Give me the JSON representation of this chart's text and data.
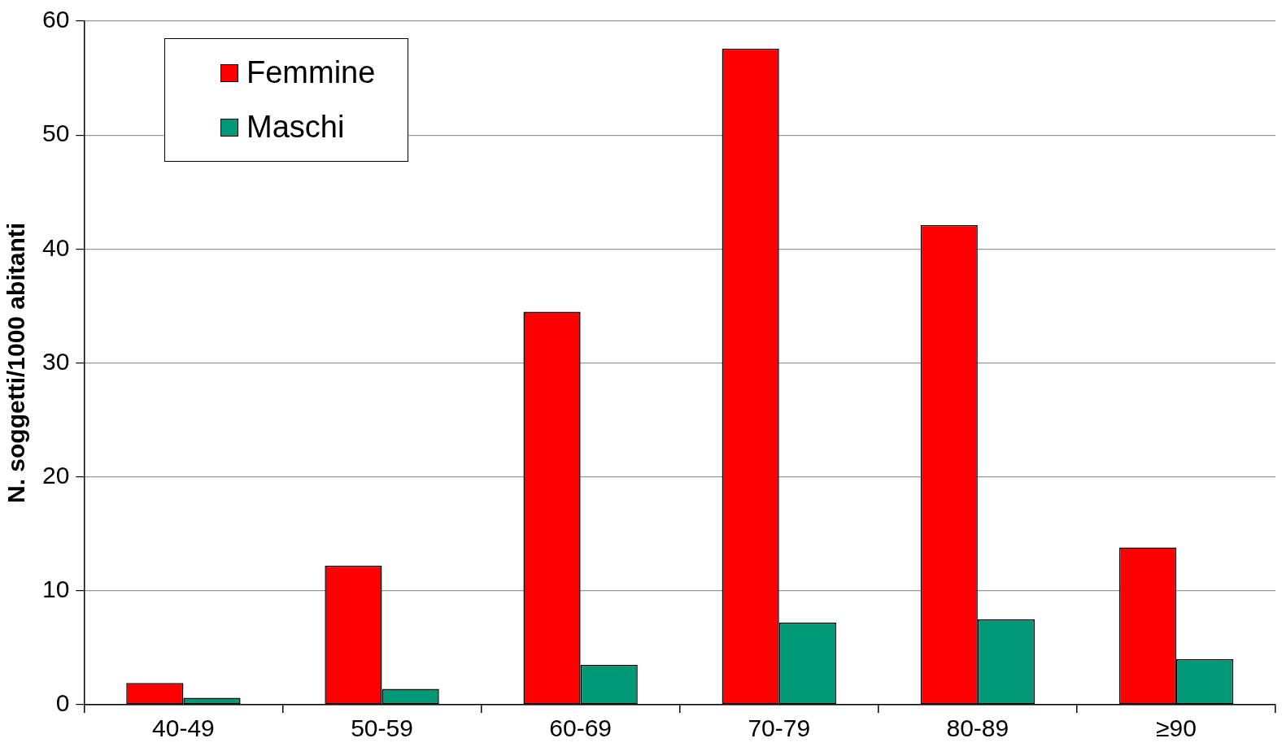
{
  "chart_data": {
    "type": "bar",
    "ylabel": "N. soggetti/1000 abitanti",
    "categories": [
      "40-49",
      "50-59",
      "60-69",
      "70-79",
      "80-89",
      "≥90"
    ],
    "series": [
      {
        "name": "Femmine",
        "color": "#ff0000",
        "values": [
          1.9,
          12.2,
          34.5,
          57.6,
          42.1,
          13.8
        ]
      },
      {
        "name": "Maschi",
        "color": "#009977",
        "values": [
          0.6,
          1.4,
          3.5,
          7.2,
          7.5,
          4.0
        ]
      }
    ],
    "ylim": [
      0,
      60
    ],
    "yticks": [
      0,
      10,
      20,
      30,
      40,
      50,
      60
    ],
    "grid": "y",
    "legend": "top left"
  }
}
